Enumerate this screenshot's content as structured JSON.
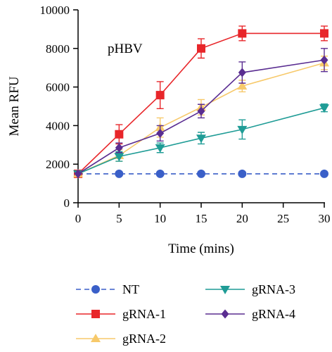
{
  "chart_data": {
    "type": "line",
    "title": "",
    "annotation": "pHBV",
    "xlabel": "Time (mins)",
    "ylabel": "Mean RFU",
    "xlim": [
      0,
      30
    ],
    "ylim": [
      0,
      10000
    ],
    "xticks": [
      0,
      5,
      10,
      15,
      20,
      25,
      30
    ],
    "yticks": [
      0,
      2000,
      4000,
      6000,
      8000,
      10000
    ],
    "grid": false,
    "legend_position": "bottom",
    "series": [
      {
        "name": "NT",
        "color": "#3a5fc8",
        "marker": "circle",
        "dashed": true,
        "x": [
          0,
          5,
          10,
          15,
          20,
          30
        ],
        "y": [
          1500,
          1500,
          1500,
          1500,
          1500,
          1500
        ],
        "err": [
          0,
          0,
          0,
          0,
          0,
          0
        ]
      },
      {
        "name": "gRNA-1",
        "color": "#e8262a",
        "marker": "square",
        "dashed": false,
        "x": [
          0,
          5,
          10,
          15,
          20,
          30
        ],
        "y": [
          1500,
          3550,
          5580,
          8000,
          8780,
          8780
        ],
        "err": [
          0,
          500,
          700,
          500,
          380,
          380
        ]
      },
      {
        "name": "gRNA-2",
        "color": "#f7c96a",
        "marker": "triangle-up",
        "dashed": false,
        "x": [
          0,
          5,
          10,
          15,
          20,
          30
        ],
        "y": [
          1500,
          2450,
          3900,
          4950,
          6050,
          7250
        ],
        "err": [
          0,
          300,
          500,
          400,
          300,
          350
        ]
      },
      {
        "name": "gRNA-3",
        "color": "#1f9c96",
        "marker": "triangle-down",
        "dashed": false,
        "x": [
          0,
          5,
          10,
          15,
          20,
          30
        ],
        "y": [
          1500,
          2400,
          2850,
          3350,
          3800,
          4920
        ],
        "err": [
          0,
          250,
          250,
          300,
          500,
          200
        ]
      },
      {
        "name": "gRNA-4",
        "color": "#5a2d91",
        "marker": "diamond",
        "dashed": false,
        "x": [
          0,
          5,
          10,
          15,
          20,
          30
        ],
        "y": [
          1500,
          2850,
          3600,
          4750,
          6750,
          7400
        ],
        "err": [
          0,
          250,
          400,
          350,
          550,
          600
        ]
      }
    ],
    "legend_order": [
      0,
      3,
      1,
      4,
      2
    ]
  }
}
